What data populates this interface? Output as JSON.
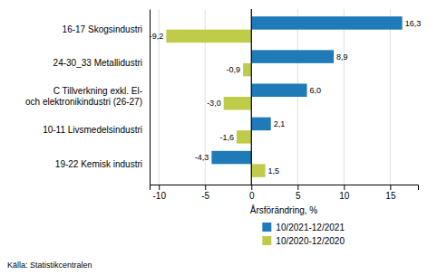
{
  "chart_data": {
    "type": "bar",
    "orientation": "horizontal",
    "categories": [
      "16-17 Skogsindustri",
      "24-30_33 Metallidustri",
      "C Tillverkning exkl. El-\noch elektronikindustri  (26-27)",
      "10-11 Livsmedelsindustri",
      "19-22 Kemisk industri"
    ],
    "series": [
      {
        "name": "10/2021-12/2021",
        "color": "#1F7AB8",
        "values": [
          16.3,
          8.9,
          6.0,
          2.1,
          -4.3
        ],
        "value_labels": [
          "16,3",
          "8,9",
          "6,0",
          "2,1",
          "-4,3"
        ]
      },
      {
        "name": "10/2020-12/2020",
        "color": "#BFCC4A",
        "values": [
          -9.2,
          -0.9,
          -3.0,
          -1.6,
          1.5
        ],
        "value_labels": [
          "-9,2",
          "-0,9",
          "-3,0",
          "-1,6",
          "1,5"
        ]
      }
    ],
    "xlabel": "Årsförändring, %",
    "xlim": [
      -11,
      18
    ],
    "xticks": [
      -10,
      -5,
      0,
      5,
      10,
      15
    ],
    "grid": true,
    "data_labels": true,
    "legend": "bottom",
    "annotations": [
      "Källa: Statistikcentralen"
    ]
  }
}
